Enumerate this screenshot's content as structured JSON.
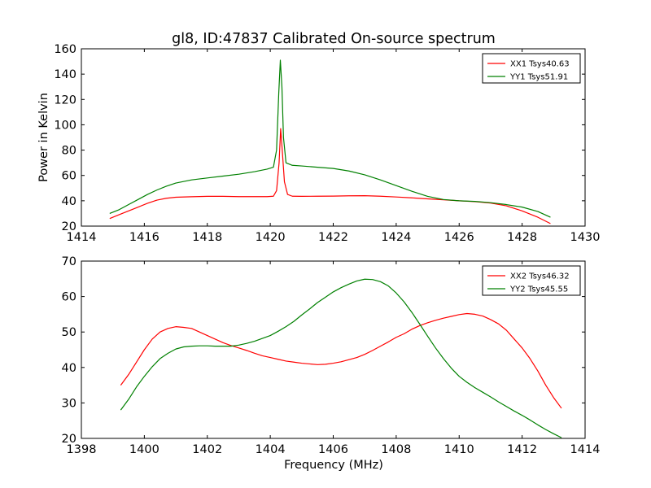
{
  "chart_data": [
    {
      "type": "line",
      "title": "gl8, ID:47837 Calibrated On-source spectrum",
      "xlabel": "",
      "ylabel": "Power in Kelvin",
      "xlim": [
        1414,
        1430
      ],
      "ylim": [
        20,
        160
      ],
      "xticks": [
        1414,
        1416,
        1418,
        1420,
        1422,
        1424,
        1426,
        1428,
        1430
      ],
      "yticks": [
        20,
        40,
        60,
        80,
        100,
        120,
        140,
        160
      ],
      "legend_position": "top-right",
      "series": [
        {
          "name": "XX1 Tsys40.63",
          "color": "#ff0000",
          "points": [
            [
              1414.9,
              26
            ],
            [
              1415.2,
              29
            ],
            [
              1415.5,
              32
            ],
            [
              1415.8,
              35
            ],
            [
              1416.1,
              38
            ],
            [
              1416.4,
              40.5
            ],
            [
              1416.7,
              42
            ],
            [
              1417.0,
              42.8
            ],
            [
              1417.5,
              43.2
            ],
            [
              1418.0,
              43.5
            ],
            [
              1418.5,
              43.5
            ],
            [
              1419.0,
              43.3
            ],
            [
              1419.5,
              43.3
            ],
            [
              1419.9,
              43.3
            ],
            [
              1420.1,
              43.6
            ],
            [
              1420.2,
              48
            ],
            [
              1420.28,
              70
            ],
            [
              1420.33,
              97
            ],
            [
              1420.38,
              80
            ],
            [
              1420.45,
              55
            ],
            [
              1420.55,
              45
            ],
            [
              1420.7,
              43.6
            ],
            [
              1421.0,
              43.5
            ],
            [
              1421.5,
              43.6
            ],
            [
              1422.0,
              43.7
            ],
            [
              1422.5,
              43.9
            ],
            [
              1423.0,
              44
            ],
            [
              1423.5,
              43.6
            ],
            [
              1424.0,
              43
            ],
            [
              1424.5,
              42.3
            ],
            [
              1425.0,
              41.5
            ],
            [
              1425.5,
              40.8
            ],
            [
              1426.0,
              40
            ],
            [
              1426.5,
              39.3
            ],
            [
              1427.0,
              38.2
            ],
            [
              1427.5,
              36
            ],
            [
              1428.0,
              32
            ],
            [
              1428.5,
              27
            ],
            [
              1428.9,
              22
            ]
          ]
        },
        {
          "name": "YY1 Tsys51.91",
          "color": "#008000",
          "points": [
            [
              1414.9,
              30
            ],
            [
              1415.2,
              33
            ],
            [
              1415.5,
              37
            ],
            [
              1415.8,
              41
            ],
            [
              1416.1,
              45
            ],
            [
              1416.4,
              48.5
            ],
            [
              1416.7,
              51.5
            ],
            [
              1417.0,
              54
            ],
            [
              1417.5,
              56.5
            ],
            [
              1418.0,
              58
            ],
            [
              1418.5,
              59.5
            ],
            [
              1419.0,
              61
            ],
            [
              1419.5,
              63
            ],
            [
              1419.9,
              65
            ],
            [
              1420.1,
              66.5
            ],
            [
              1420.2,
              80
            ],
            [
              1420.27,
              125
            ],
            [
              1420.32,
              151
            ],
            [
              1420.37,
              130
            ],
            [
              1420.42,
              90
            ],
            [
              1420.5,
              70
            ],
            [
              1420.7,
              68
            ],
            [
              1421.0,
              67.5
            ],
            [
              1421.5,
              66.5
            ],
            [
              1422.0,
              65.5
            ],
            [
              1422.5,
              63.5
            ],
            [
              1423.0,
              60.5
            ],
            [
              1423.5,
              56.5
            ],
            [
              1424.0,
              52
            ],
            [
              1424.5,
              47.5
            ],
            [
              1425.0,
              43.5
            ],
            [
              1425.5,
              41
            ],
            [
              1426.0,
              40
            ],
            [
              1426.5,
              39.5
            ],
            [
              1427.0,
              38.5
            ],
            [
              1427.5,
              37
            ],
            [
              1428.0,
              35
            ],
            [
              1428.5,
              31.5
            ],
            [
              1428.9,
              27
            ]
          ]
        }
      ]
    },
    {
      "type": "line",
      "title": "",
      "xlabel": "Frequency (MHz)",
      "ylabel": "",
      "xlim": [
        1398,
        1414
      ],
      "ylim": [
        20,
        70
      ],
      "xticks": [
        1398,
        1400,
        1402,
        1404,
        1406,
        1408,
        1410,
        1412,
        1414
      ],
      "yticks": [
        20,
        30,
        40,
        50,
        60,
        70
      ],
      "legend_position": "top-right",
      "series": [
        {
          "name": "XX2 Tsys46.32",
          "color": "#ff0000",
          "points": [
            [
              1399.25,
              35
            ],
            [
              1399.5,
              38
            ],
            [
              1399.75,
              41.5
            ],
            [
              1400.0,
              45
            ],
            [
              1400.25,
              48
            ],
            [
              1400.5,
              50
            ],
            [
              1400.75,
              51
            ],
            [
              1401.0,
              51.5
            ],
            [
              1401.25,
              51.3
            ],
            [
              1401.5,
              51
            ],
            [
              1401.75,
              50
            ],
            [
              1402.0,
              49
            ],
            [
              1402.25,
              48
            ],
            [
              1402.5,
              47
            ],
            [
              1402.75,
              46.2
            ],
            [
              1403.0,
              45.5
            ],
            [
              1403.25,
              44.8
            ],
            [
              1403.5,
              44
            ],
            [
              1403.75,
              43.3
            ],
            [
              1404.0,
              42.8
            ],
            [
              1404.25,
              42.3
            ],
            [
              1404.5,
              41.8
            ],
            [
              1404.75,
              41.5
            ],
            [
              1405.0,
              41.2
            ],
            [
              1405.25,
              41
            ],
            [
              1405.5,
              40.8
            ],
            [
              1405.75,
              40.9
            ],
            [
              1406.0,
              41.2
            ],
            [
              1406.25,
              41.6
            ],
            [
              1406.5,
              42.2
            ],
            [
              1406.75,
              42.8
            ],
            [
              1407.0,
              43.7
            ],
            [
              1407.25,
              44.8
            ],
            [
              1407.5,
              46
            ],
            [
              1407.75,
              47.2
            ],
            [
              1408.0,
              48.5
            ],
            [
              1408.25,
              49.5
            ],
            [
              1408.5,
              50.8
            ],
            [
              1408.75,
              51.8
            ],
            [
              1409.0,
              52.6
            ],
            [
              1409.25,
              53.3
            ],
            [
              1409.5,
              53.9
            ],
            [
              1409.75,
              54.4
            ],
            [
              1410.0,
              54.9
            ],
            [
              1410.25,
              55.2
            ],
            [
              1410.5,
              55
            ],
            [
              1410.75,
              54.5
            ],
            [
              1411.0,
              53.5
            ],
            [
              1411.25,
              52.3
            ],
            [
              1411.5,
              50.5
            ],
            [
              1411.75,
              48
            ],
            [
              1412.0,
              45.5
            ],
            [
              1412.25,
              42.5
            ],
            [
              1412.5,
              39
            ],
            [
              1412.75,
              35
            ],
            [
              1413.0,
              31.5
            ],
            [
              1413.25,
              28.5
            ]
          ]
        },
        {
          "name": "YY2 Tsys45.55",
          "color": "#008000",
          "points": [
            [
              1399.25,
              28
            ],
            [
              1399.5,
              31
            ],
            [
              1399.75,
              34.5
            ],
            [
              1400.0,
              37.5
            ],
            [
              1400.25,
              40.2
            ],
            [
              1400.5,
              42.5
            ],
            [
              1400.75,
              44
            ],
            [
              1401.0,
              45.2
            ],
            [
              1401.25,
              45.8
            ],
            [
              1401.5,
              46
            ],
            [
              1401.75,
              46.1
            ],
            [
              1402.0,
              46.1
            ],
            [
              1402.25,
              46
            ],
            [
              1402.5,
              46
            ],
            [
              1402.75,
              46
            ],
            [
              1403.0,
              46.3
            ],
            [
              1403.25,
              46.8
            ],
            [
              1403.5,
              47.4
            ],
            [
              1403.75,
              48.2
            ],
            [
              1404.0,
              49
            ],
            [
              1404.25,
              50.2
            ],
            [
              1404.5,
              51.5
            ],
            [
              1404.75,
              53
            ],
            [
              1405.0,
              54.8
            ],
            [
              1405.25,
              56.5
            ],
            [
              1405.5,
              58.3
            ],
            [
              1405.75,
              59.8
            ],
            [
              1406.0,
              61.3
            ],
            [
              1406.25,
              62.5
            ],
            [
              1406.5,
              63.5
            ],
            [
              1406.75,
              64.4
            ],
            [
              1407.0,
              64.9
            ],
            [
              1407.25,
              64.8
            ],
            [
              1407.5,
              64.2
            ],
            [
              1407.75,
              63
            ],
            [
              1408.0,
              61
            ],
            [
              1408.25,
              58.5
            ],
            [
              1408.5,
              55.5
            ],
            [
              1408.75,
              52.2
            ],
            [
              1409.0,
              48.8
            ],
            [
              1409.25,
              45.5
            ],
            [
              1409.5,
              42.5
            ],
            [
              1409.75,
              39.8
            ],
            [
              1410.0,
              37.5
            ],
            [
              1410.25,
              35.8
            ],
            [
              1410.5,
              34.3
            ],
            [
              1410.75,
              33
            ],
            [
              1411.0,
              31.7
            ],
            [
              1411.25,
              30.3
            ],
            [
              1411.5,
              29
            ],
            [
              1411.75,
              27.7
            ],
            [
              1412.0,
              26.5
            ],
            [
              1412.25,
              25.2
            ],
            [
              1412.5,
              23.8
            ],
            [
              1412.75,
              22.5
            ],
            [
              1413.0,
              21.3
            ],
            [
              1413.25,
              20.2
            ]
          ]
        }
      ]
    }
  ]
}
